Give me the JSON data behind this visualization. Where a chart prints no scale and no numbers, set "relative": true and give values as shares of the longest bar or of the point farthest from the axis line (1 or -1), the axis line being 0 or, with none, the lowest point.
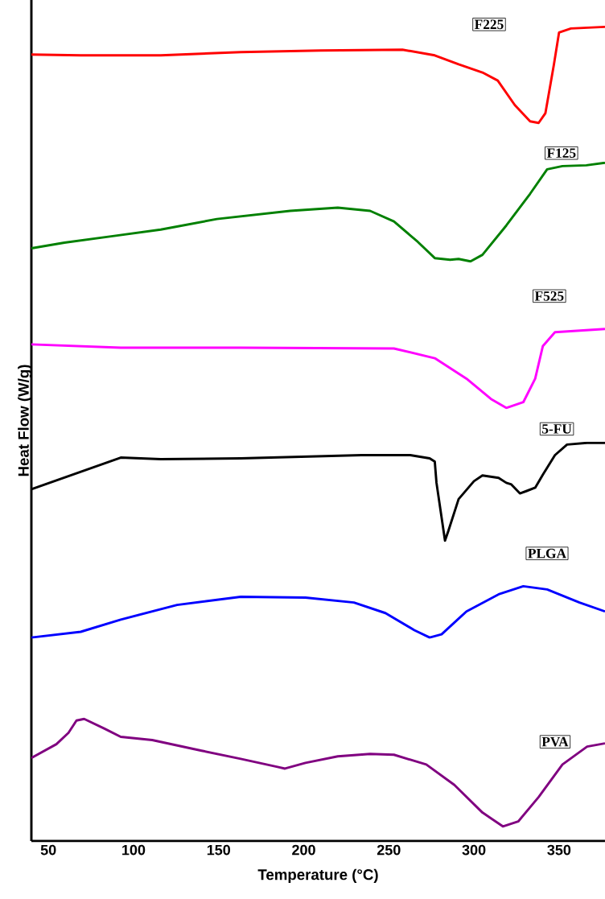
{
  "chart_data": {
    "type": "line",
    "relative": true,
    "xlabel": "Temperature (°C)",
    "ylabel": "Heat Flow (W/g)",
    "xlim": [
      40,
      377
    ],
    "xticks": [
      50,
      100,
      150,
      200,
      250,
      300,
      350
    ],
    "series": [
      {
        "name": "F225",
        "color": "#ff0000",
        "x": [
          40,
          69,
          116,
          163,
          210,
          258,
          277,
          291,
          305,
          314,
          324,
          333,
          338,
          342,
          345,
          347,
          350,
          357,
          377
        ],
        "values": [
          0.966,
          0.965,
          0.965,
          0.969,
          0.971,
          0.972,
          0.965,
          0.954,
          0.944,
          0.934,
          0.904,
          0.884,
          0.882,
          0.894,
          0.93,
          0.954,
          0.993,
          0.998,
          1.0
        ]
      },
      {
        "name": "F125",
        "color": "#008000",
        "x": [
          40,
          59.4,
          87.8,
          116,
          149,
          192,
          220,
          239,
          253,
          267,
          277,
          286,
          291,
          298,
          305,
          319,
          333,
          343,
          352,
          366,
          377
        ],
        "values": [
          0.728,
          0.735,
          0.743,
          0.751,
          0.764,
          0.774,
          0.778,
          0.774,
          0.761,
          0.736,
          0.716,
          0.714,
          0.715,
          0.712,
          0.72,
          0.756,
          0.795,
          0.825,
          0.829,
          0.83,
          0.833
        ]
      },
      {
        "name": "F525",
        "color": "#ff00ff",
        "x": [
          40,
          92.5,
          163,
          253,
          277,
          295.6,
          310,
          319,
          329,
          336,
          340.5,
          347.6,
          377
        ],
        "values": [
          0.61,
          0.606,
          0.606,
          0.605,
          0.593,
          0.568,
          0.543,
          0.532,
          0.539,
          0.568,
          0.608,
          0.625,
          0.629
        ]
      },
      {
        "name": "5-FU",
        "color": "#000000",
        "x": [
          40,
          92.5,
          116,
          163,
          234,
          262.6,
          274,
          277,
          278,
          283,
          285,
          291,
          300,
          305,
          314.5,
          319,
          322,
          327,
          331,
          336,
          340.5,
          347.6,
          354.7,
          366.5,
          377
        ],
        "values": [
          0.432,
          0.471,
          0.469,
          0.47,
          0.474,
          0.474,
          0.47,
          0.466,
          0.44,
          0.369,
          0.381,
          0.42,
          0.442,
          0.449,
          0.446,
          0.44,
          0.438,
          0.427,
          0.43,
          0.434,
          0.45,
          0.474,
          0.487,
          0.489,
          0.489
        ]
      },
      {
        "name": "PLGA",
        "color": "#0000ff",
        "x": [
          40,
          69,
          92.5,
          125.6,
          163,
          201,
          229.5,
          248,
          265,
          274,
          281,
          295.6,
          314.5,
          329,
          343,
          362,
          377
        ],
        "values": [
          0.25,
          0.257,
          0.272,
          0.29,
          0.3,
          0.299,
          0.293,
          0.28,
          0.259,
          0.25,
          0.254,
          0.282,
          0.303,
          0.313,
          0.309,
          0.293,
          0.282
        ]
      },
      {
        "name": "PVA",
        "color": "#800080",
        "x": [
          40,
          54.7,
          61.8,
          66.5,
          71,
          83,
          92.5,
          111,
          140,
          163,
          184.6,
          189,
          201,
          220,
          239,
          253,
          272,
          288.5,
          305,
          317,
          326,
          338,
          352,
          366.5,
          377
        ],
        "values": [
          0.102,
          0.119,
          0.133,
          0.148,
          0.15,
          0.138,
          0.128,
          0.124,
          0.111,
          0.101,
          0.091,
          0.089,
          0.096,
          0.104,
          0.107,
          0.106,
          0.094,
          0.069,
          0.035,
          0.018,
          0.024,
          0.054,
          0.094,
          0.116,
          0.12
        ]
      }
    ]
  }
}
